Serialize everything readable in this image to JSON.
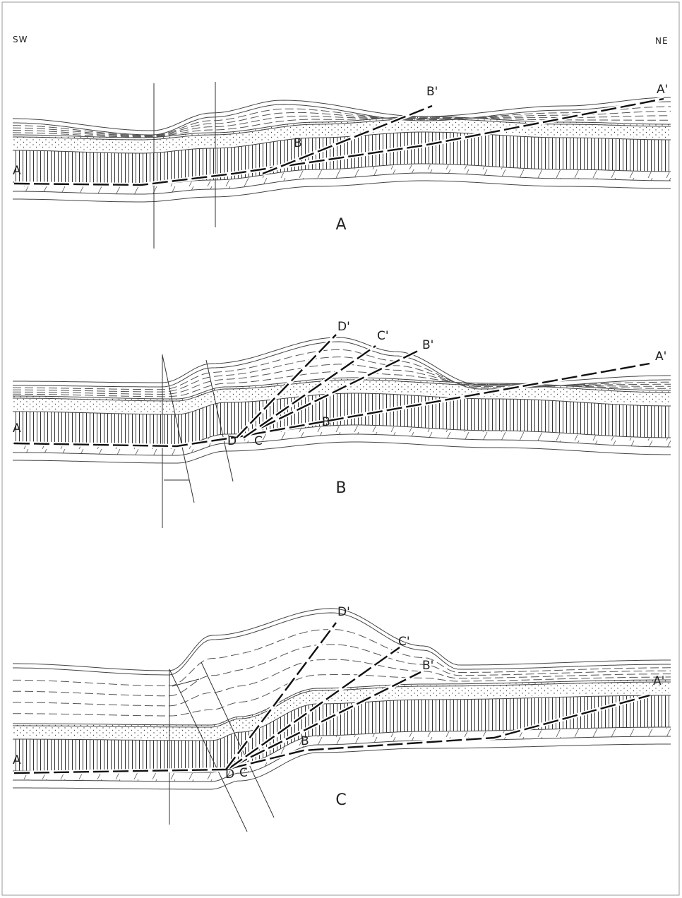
{
  "corner_labels": {
    "left": "SW",
    "right": "NE"
  },
  "panels": [
    {
      "caption": "A",
      "labels": [
        "A",
        "A'",
        "B",
        "B'"
      ]
    },
    {
      "caption": "B",
      "labels": [
        "A",
        "A'",
        "B",
        "B'",
        "C",
        "C'",
        "D",
        "D'"
      ]
    },
    {
      "caption": "C",
      "labels": [
        "A",
        "A'",
        "B",
        "B'",
        "C",
        "C'",
        "D",
        "D'"
      ]
    }
  ]
}
